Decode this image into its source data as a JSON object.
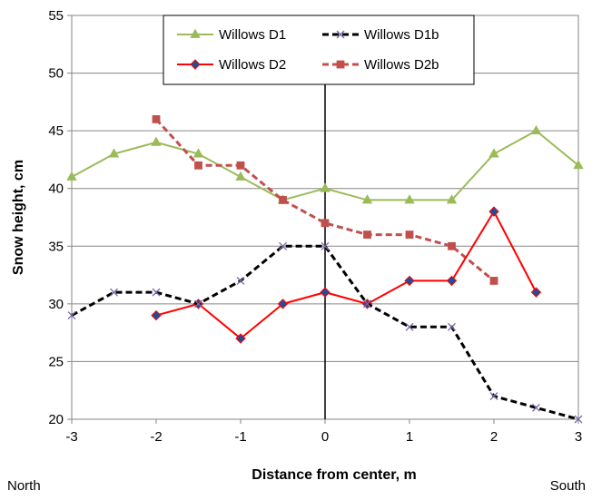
{
  "chart_data": {
    "type": "line",
    "title": "",
    "xlabel": "Distance from center, m",
    "ylabel": "Snow height, cm",
    "xlim": [
      -3,
      3
    ],
    "ylim": [
      20,
      55
    ],
    "x_ticks": [
      -3,
      -2,
      -1,
      0,
      1,
      2,
      3
    ],
    "y_ticks": [
      20,
      25,
      30,
      35,
      40,
      45,
      50,
      55
    ],
    "grid": "horizontal",
    "legend_position": "top-center",
    "side_labels": {
      "left": "North",
      "right": "South"
    },
    "vertical_reference_line_x": 0,
    "series": [
      {
        "name": "Willows D1",
        "color": "#9BBB59",
        "line_style": "solid",
        "marker": "triangle",
        "points": [
          [
            -3,
            41
          ],
          [
            -2.5,
            43
          ],
          [
            -2,
            44
          ],
          [
            -1.5,
            43
          ],
          [
            -1,
            41
          ],
          [
            -0.5,
            39
          ],
          [
            0,
            40
          ],
          [
            0.5,
            39
          ],
          [
            1,
            39
          ],
          [
            1.5,
            39
          ],
          [
            2,
            43
          ],
          [
            2.5,
            45
          ],
          [
            3,
            42
          ]
        ]
      },
      {
        "name": "Willows D1b",
        "color": "#000000",
        "marker_color": "#7B68A6",
        "line_style": "dashed",
        "marker": "x",
        "points": [
          [
            -3,
            29
          ],
          [
            -2.5,
            31
          ],
          [
            -2,
            31
          ],
          [
            -1.5,
            30
          ],
          [
            -1,
            32
          ],
          [
            -0.5,
            35
          ],
          [
            0,
            35
          ],
          [
            0.5,
            30
          ],
          [
            1,
            28
          ],
          [
            1.5,
            28
          ],
          [
            2,
            22
          ],
          [
            2.5,
            21
          ],
          [
            3,
            20
          ]
        ]
      },
      {
        "name": "Willows D2",
        "color": "#FF0000",
        "marker_color": "#1F4E9A",
        "line_style": "solid",
        "marker": "diamond",
        "points": [
          [
            -2,
            29
          ],
          [
            -1.5,
            30
          ],
          [
            -1,
            27
          ],
          [
            -0.5,
            30
          ],
          [
            0,
            31
          ],
          [
            0.5,
            30
          ],
          [
            1,
            32
          ],
          [
            1.5,
            32
          ],
          [
            2,
            38
          ],
          [
            2.5,
            31
          ]
        ]
      },
      {
        "name": "Willows D2b",
        "color": "#C0504D",
        "line_style": "dashed",
        "marker": "square",
        "points": [
          [
            -2,
            46
          ],
          [
            -1.5,
            42
          ],
          [
            -1,
            42
          ],
          [
            -0.5,
            39
          ],
          [
            0,
            37
          ],
          [
            0.5,
            36
          ],
          [
            1,
            36
          ],
          [
            1.5,
            35
          ],
          [
            2,
            32
          ]
        ]
      }
    ]
  }
}
